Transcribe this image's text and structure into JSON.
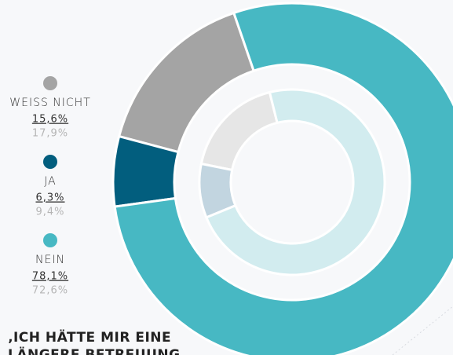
{
  "chart_data": {
    "type": "donut",
    "title": [
      "‚ICH HÄTTE MIR EINE",
      "LÄNGERE BETREUUNG"
    ],
    "categories": [
      "WEISS NICHT",
      "JA",
      "NEIN"
    ],
    "series": [
      {
        "values": [
          15.6,
          6.3,
          78.1
        ],
        "value_labels": [
          "15,6%",
          "6,3%",
          "78,1%"
        ],
        "colors": [
          "#a4a4a4",
          "#025e7e",
          "#47b8c3"
        ]
      },
      {
        "values": [
          17.9,
          9.4,
          72.6
        ],
        "value_labels": [
          "17,9%",
          "9,4%",
          "72,6%"
        ],
        "colors": [
          "#e6e6e6",
          "#c2d5e0",
          "#d2ecef"
        ]
      }
    ]
  }
}
